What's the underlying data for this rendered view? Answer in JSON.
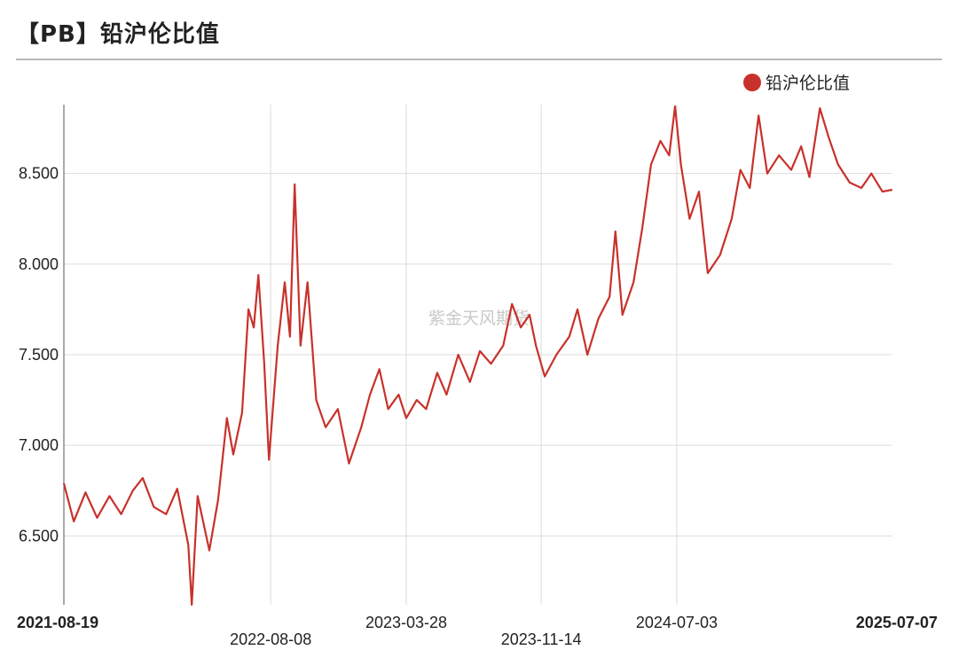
{
  "title": "【PB】铅沪伦比值",
  "watermark": "紫金天风期货",
  "colors": {
    "series": "#c8312b",
    "grid": "#dcdcdc",
    "axis": "#555555"
  },
  "chart_data": {
    "type": "line",
    "title": "【PB】铅沪伦比值",
    "xlabel": "",
    "ylabel": "",
    "ylim": [
      6.12,
      8.88
    ],
    "yticks": [
      6.5,
      7.0,
      7.5,
      8.0,
      8.5
    ],
    "ytick_labels": [
      "6.500",
      "7.000",
      "7.500",
      "8.000",
      "8.500"
    ],
    "xrange": [
      "2021-08-19",
      "2025-07-07"
    ],
    "xticks": [
      {
        "date": "2021-08-19",
        "label": "2021-08-19",
        "bold": true,
        "row": 0
      },
      {
        "date": "2022-08-08",
        "label": "2022-08-08",
        "bold": false,
        "row": 1
      },
      {
        "date": "2023-03-28",
        "label": "2023-03-28",
        "bold": false,
        "row": 0
      },
      {
        "date": "2023-11-14",
        "label": "2023-11-14",
        "bold": false,
        "row": 1
      },
      {
        "date": "2024-07-03",
        "label": "2024-07-03",
        "bold": false,
        "row": 0
      },
      {
        "date": "2025-07-07",
        "label": "2025-07-07",
        "bold": true,
        "row": 0
      }
    ],
    "grid": true,
    "legend": "top-right",
    "series": [
      {
        "name": "铅沪伦比值",
        "points": [
          [
            "2021-08-19",
            6.79
          ],
          [
            "2021-09-05",
            6.58
          ],
          [
            "2021-09-25",
            6.74
          ],
          [
            "2021-10-15",
            6.6
          ],
          [
            "2021-11-05",
            6.72
          ],
          [
            "2021-11-25",
            6.62
          ],
          [
            "2021-12-15",
            6.75
          ],
          [
            "2022-01-01",
            6.82
          ],
          [
            "2022-01-20",
            6.66
          ],
          [
            "2022-02-10",
            6.62
          ],
          [
            "2022-03-01",
            6.76
          ],
          [
            "2022-03-20",
            6.45
          ],
          [
            "2022-03-26",
            6.12
          ],
          [
            "2022-04-05",
            6.72
          ],
          [
            "2022-04-25",
            6.42
          ],
          [
            "2022-05-10",
            6.7
          ],
          [
            "2022-05-25",
            7.15
          ],
          [
            "2022-06-05",
            6.95
          ],
          [
            "2022-06-20",
            7.18
          ],
          [
            "2022-07-01",
            7.75
          ],
          [
            "2022-07-10",
            7.65
          ],
          [
            "2022-07-18",
            7.94
          ],
          [
            "2022-07-28",
            7.45
          ],
          [
            "2022-08-05",
            6.92
          ],
          [
            "2022-08-20",
            7.55
          ],
          [
            "2022-09-01",
            7.9
          ],
          [
            "2022-09-10",
            7.6
          ],
          [
            "2022-09-18",
            8.44
          ],
          [
            "2022-09-28",
            7.55
          ],
          [
            "2022-10-10",
            7.9
          ],
          [
            "2022-10-25",
            7.25
          ],
          [
            "2022-11-10",
            7.1
          ],
          [
            "2022-12-01",
            7.2
          ],
          [
            "2022-12-20",
            6.9
          ],
          [
            "2023-01-10",
            7.1
          ],
          [
            "2023-01-25",
            7.28
          ],
          [
            "2023-02-10",
            7.42
          ],
          [
            "2023-02-25",
            7.2
          ],
          [
            "2023-03-15",
            7.28
          ],
          [
            "2023-03-28",
            7.15
          ],
          [
            "2023-04-15",
            7.25
          ],
          [
            "2023-05-01",
            7.2
          ],
          [
            "2023-05-20",
            7.4
          ],
          [
            "2023-06-05",
            7.28
          ],
          [
            "2023-06-25",
            7.5
          ],
          [
            "2023-07-15",
            7.35
          ],
          [
            "2023-08-01",
            7.52
          ],
          [
            "2023-08-20",
            7.45
          ],
          [
            "2023-09-10",
            7.55
          ],
          [
            "2023-09-25",
            7.78
          ],
          [
            "2023-10-10",
            7.65
          ],
          [
            "2023-10-25",
            7.72
          ],
          [
            "2023-11-05",
            7.55
          ],
          [
            "2023-11-20",
            7.38
          ],
          [
            "2023-12-10",
            7.5
          ],
          [
            "2024-01-01",
            7.6
          ],
          [
            "2024-01-15",
            7.75
          ],
          [
            "2024-02-01",
            7.5
          ],
          [
            "2024-02-20",
            7.7
          ],
          [
            "2024-03-10",
            7.82
          ],
          [
            "2024-03-20",
            8.18
          ],
          [
            "2024-04-01",
            7.72
          ],
          [
            "2024-04-20",
            7.9
          ],
          [
            "2024-05-05",
            8.2
          ],
          [
            "2024-05-20",
            8.55
          ],
          [
            "2024-06-05",
            8.68
          ],
          [
            "2024-06-20",
            8.6
          ],
          [
            "2024-06-30",
            8.87
          ],
          [
            "2024-07-10",
            8.55
          ],
          [
            "2024-07-25",
            8.25
          ],
          [
            "2024-08-10",
            8.4
          ],
          [
            "2024-08-25",
            7.95
          ],
          [
            "2024-09-15",
            8.05
          ],
          [
            "2024-10-05",
            8.25
          ],
          [
            "2024-10-20",
            8.52
          ],
          [
            "2024-11-05",
            8.42
          ],
          [
            "2024-11-20",
            8.82
          ],
          [
            "2024-12-05",
            8.5
          ],
          [
            "2024-12-25",
            8.6
          ],
          [
            "2025-01-15",
            8.52
          ],
          [
            "2025-02-01",
            8.65
          ],
          [
            "2025-02-15",
            8.48
          ],
          [
            "2025-03-05",
            8.86
          ],
          [
            "2025-03-20",
            8.7
          ],
          [
            "2025-04-05",
            8.55
          ],
          [
            "2025-04-25",
            8.45
          ],
          [
            "2025-05-15",
            8.42
          ],
          [
            "2025-06-01",
            8.5
          ],
          [
            "2025-06-20",
            8.4
          ],
          [
            "2025-07-07",
            8.41
          ]
        ]
      }
    ]
  }
}
